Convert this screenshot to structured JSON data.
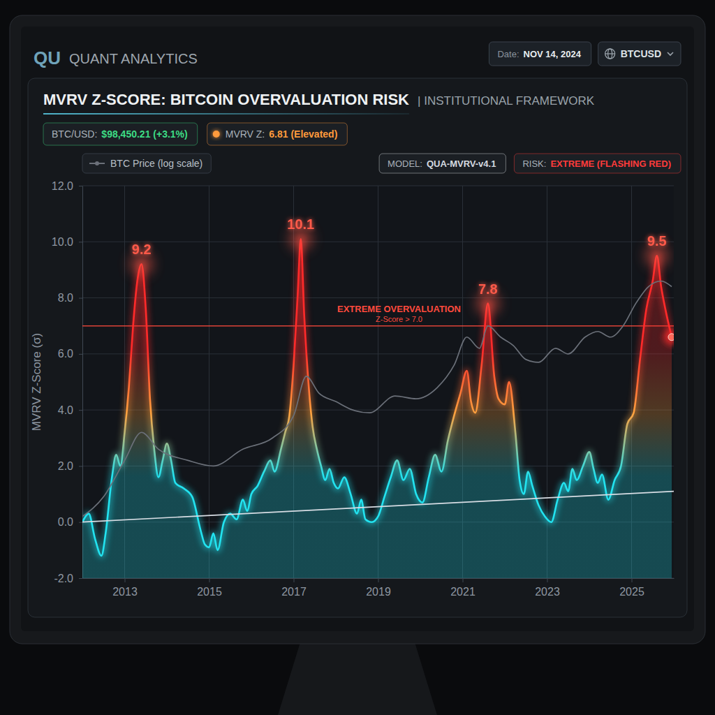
{
  "dashboard": {
    "brand_mark": "QU",
    "brand": "QUANT ANALYTICS",
    "date_label": "Date:",
    "date": "NOV 14, 2024",
    "ticker": "BTCUSD",
    "badges": [
      {
        "label": "BTC/USD:",
        "value": "$98,450.21 (+3.1%)",
        "color": "#3ddc84"
      },
      {
        "label": "MVRV Z:",
        "value": "6.81 (Elevated)",
        "color": "#ff9a3c",
        "marker": "dot"
      },
      {
        "label": "MODEL:",
        "value": "QUA-MVRV-v4.1",
        "color": "#d6dbe0"
      },
      {
        "label": "RISK:",
        "value": "EXTREME (FLASHING RED)",
        "color": "#ff3b3b"
      }
    ]
  },
  "chart_data": {
    "type": "line",
    "title": "MVRV Z-SCORE: BITCOIN OVERVALUATION RISK",
    "subtitle": "| INSTITUTIONAL FRAMEWORK",
    "y_label": "MVRV Z-Score (σ)",
    "xlim": [
      2012.0,
      2026.0
    ],
    "xticks": [
      2013,
      2015,
      2017,
      2019,
      2021,
      2023,
      2025
    ],
    "ylim": [
      -2,
      12
    ],
    "yticks": [
      {
        "value": -2,
        "label": "-2.0"
      },
      {
        "value": 0,
        "label": "0.0"
      },
      {
        "value": 2,
        "label": "2.0"
      },
      {
        "value": 4,
        "label": "4.0"
      },
      {
        "value": 6,
        "label": "6.0"
      },
      {
        "value": 8,
        "label": "8.0"
      },
      {
        "value": 10,
        "label": "10.0"
      },
      {
        "value": 12,
        "label": "12.0"
      }
    ],
    "grid": true,
    "legend": "top-left",
    "series": [
      {
        "type": "area",
        "colors": [
          "#22e3f0",
          "#ffa23e",
          "#ff2a2a"
        ],
        "x": [
          2012.0,
          2012.15,
          2012.3,
          2012.45,
          2012.55,
          2012.7,
          2012.8,
          2012.9,
          2013.0,
          2013.1,
          2013.2,
          2013.3,
          2013.4,
          2013.5,
          2013.6,
          2013.7,
          2013.8,
          2013.9,
          2014.0,
          2014.1,
          2014.2,
          2014.4,
          2014.6,
          2014.8,
          2014.9,
          2015.0,
          2015.1,
          2015.2,
          2015.35,
          2015.5,
          2015.65,
          2015.8,
          2015.9,
          2016.0,
          2016.15,
          2016.3,
          2016.45,
          2016.55,
          2016.7,
          2016.8,
          2016.9,
          2017.0,
          2017.1,
          2017.17,
          2017.25,
          2017.35,
          2017.45,
          2017.55,
          2017.65,
          2017.75,
          2017.85,
          2017.95,
          2018.05,
          2018.2,
          2018.35,
          2018.5,
          2018.6,
          2018.7,
          2018.85,
          2019.0,
          2019.15,
          2019.3,
          2019.45,
          2019.6,
          2019.75,
          2019.9,
          2020.05,
          2020.2,
          2020.35,
          2020.5,
          2020.65,
          2020.8,
          2020.95,
          2021.1,
          2021.2,
          2021.3,
          2021.45,
          2021.6,
          2021.75,
          2021.85,
          2022.0,
          2022.1,
          2022.25,
          2022.35,
          2022.45,
          2022.55,
          2022.65,
          2022.8,
          2022.95,
          2023.1,
          2023.25,
          2023.4,
          2023.5,
          2023.6,
          2023.7,
          2023.85,
          2024.0,
          2024.1,
          2024.2,
          2024.3,
          2024.45,
          2024.6,
          2024.75,
          2024.9,
          2025.05,
          2025.2,
          2025.35,
          2025.5,
          2025.6,
          2025.7,
          2025.8,
          2025.95
        ],
        "values": [
          0.0,
          0.3,
          -0.6,
          -1.2,
          -0.4,
          1.6,
          2.4,
          2.0,
          3.2,
          4.8,
          7.0,
          8.6,
          9.2,
          7.6,
          4.4,
          2.6,
          1.6,
          2.2,
          2.8,
          2.2,
          1.4,
          1.2,
          0.9,
          -0.3,
          -0.8,
          -0.9,
          -0.4,
          -1.0,
          0.0,
          0.3,
          0.1,
          0.8,
          0.4,
          1.0,
          1.3,
          1.8,
          2.2,
          1.8,
          2.6,
          3.2,
          3.8,
          5.6,
          8.2,
          10.1,
          7.4,
          5.0,
          3.4,
          2.6,
          2.0,
          1.5,
          1.9,
          1.4,
          1.2,
          1.6,
          1.0,
          0.3,
          0.8,
          0.1,
          0.0,
          0.2,
          0.9,
          1.6,
          2.2,
          1.5,
          1.9,
          1.0,
          0.7,
          1.6,
          2.4,
          1.8,
          2.9,
          3.8,
          4.6,
          5.4,
          4.3,
          3.9,
          5.6,
          7.8,
          5.2,
          4.4,
          4.2,
          5.0,
          3.2,
          1.5,
          1.0,
          1.8,
          1.3,
          0.6,
          0.2,
          0.0,
          0.8,
          1.4,
          1.1,
          1.9,
          1.5,
          2.0,
          2.5,
          1.9,
          1.4,
          1.7,
          0.8,
          1.5,
          2.0,
          3.5,
          3.9,
          5.8,
          7.6,
          8.6,
          9.5,
          8.4,
          7.6,
          6.6
        ]
      },
      {
        "type": "line",
        "name": "BTC Price (log scale)",
        "color": "#6b7079",
        "x": [
          2012.0,
          2012.5,
          2013.0,
          2013.4,
          2013.8,
          2014.5,
          2015.1,
          2015.8,
          2016.5,
          2017.0,
          2017.3,
          2017.6,
          2018.0,
          2018.4,
          2018.8,
          2019.4,
          2019.9,
          2020.4,
          2020.8,
          2021.1,
          2021.4,
          2021.6,
          2021.9,
          2022.2,
          2022.5,
          2022.8,
          2023.2,
          2023.5,
          2023.9,
          2024.2,
          2024.5,
          2024.8,
          2025.1,
          2025.4,
          2025.7,
          2025.95
        ],
        "values": [
          0.2,
          0.9,
          2.2,
          3.2,
          2.6,
          2.2,
          2.0,
          2.6,
          3.0,
          3.8,
          5.2,
          4.6,
          4.3,
          4.0,
          3.9,
          4.5,
          4.4,
          4.8,
          5.6,
          6.6,
          6.2,
          7.0,
          6.6,
          6.3,
          5.8,
          5.7,
          6.2,
          6.0,
          6.6,
          6.8,
          6.6,
          7.0,
          7.8,
          8.4,
          8.6,
          8.4
        ]
      },
      {
        "type": "line",
        "color": "#d7dde4",
        "x": [
          2012.0,
          2026.0
        ],
        "values": [
          0.0,
          1.1
        ]
      }
    ],
    "peak_labels": {
      "x": [
        2013.4,
        2017.17,
        2021.6,
        2025.6
      ],
      "values": [
        9.2,
        10.1,
        7.8,
        9.5
      ],
      "color": "#ff5a4a"
    },
    "annotations": [
      {
        "text": "EXTREME OVERVALUATION",
        "subtext": "Z-Score > 7.0",
        "y": 7.0,
        "color": "#ff4a3d"
      }
    ]
  }
}
